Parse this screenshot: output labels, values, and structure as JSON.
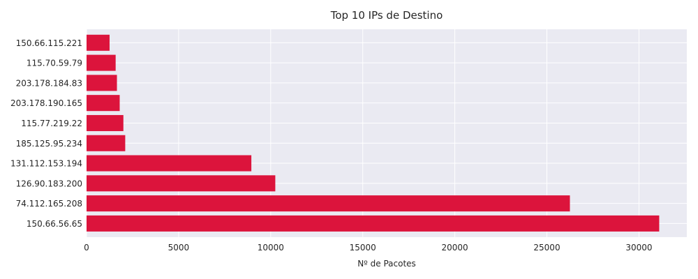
{
  "chart_data": {
    "type": "bar",
    "orientation": "horizontal",
    "title": "Top 10 IPs de Destino",
    "xlabel": "Nº de Pacotes",
    "ylabel": "",
    "categories": [
      "150.66.56.65",
      "74.112.165.208",
      "126.90.183.200",
      "131.112.153.194",
      "185.125.95.234",
      "115.77.219.22",
      "203.178.190.165",
      "203.178.184.83",
      "115.70.59.79",
      "150.66.115.221"
    ],
    "values": [
      31100,
      26250,
      10250,
      8950,
      2100,
      2000,
      1800,
      1650,
      1580,
      1250
    ],
    "xlim": [
      0,
      32600
    ],
    "xticks": [
      0,
      5000,
      10000,
      15000,
      20000,
      25000,
      30000
    ],
    "grid": true,
    "bar_color": "#dc143c",
    "background_color": "#eaeaf2",
    "grid_color": "#ffffff"
  }
}
